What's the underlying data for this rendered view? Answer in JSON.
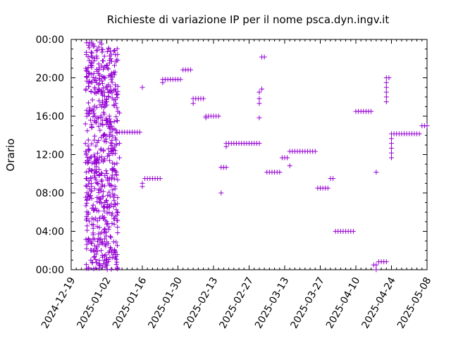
{
  "chart_data": {
    "type": "scatter",
    "title": "Richieste di variazione IP per il nome psca.dyn.ingv.it",
    "xlabel": "",
    "ylabel": "Orario",
    "marker": "+",
    "color": "#9400d3",
    "x_type": "date",
    "xlim": [
      "2024-12-19",
      "2025-05-08"
    ],
    "ylim": [
      "00:00",
      "24:00"
    ],
    "x_ticks": [
      "2024-12-19",
      "2025-01-02",
      "2025-01-16",
      "2025-01-30",
      "2025-02-13",
      "2025-02-27",
      "2025-03-13",
      "2025-03-27",
      "2025-04-10",
      "2025-04-24",
      "2025-05-08"
    ],
    "y_ticks": [
      "00:00",
      "04:00",
      "08:00",
      "12:00",
      "16:00",
      "20:00",
      "00:00"
    ],
    "grid": false,
    "legend": "none",
    "dense_region": {
      "x_range": [
        "2024-12-25",
        "2025-01-06"
      ],
      "y_range": [
        "00:00",
        "23:45"
      ],
      "columns": [
        "2024-12-25",
        "2024-12-26",
        "2024-12-27",
        "2024-12-28",
        "2024-12-29",
        "2024-12-30",
        "2024-12-31",
        "2025-01-01",
        "2025-01-02",
        "2025-01-03",
        "2025-01-04",
        "2025-01-05",
        "2025-01-06"
      ],
      "points_per_column": 48
    },
    "points": [
      {
        "x": "2025-01-06",
        "y": "14:20"
      },
      {
        "x": "2025-01-07",
        "y": "14:20"
      },
      {
        "x": "2025-01-08",
        "y": "14:20"
      },
      {
        "x": "2025-01-09",
        "y": "14:20"
      },
      {
        "x": "2025-01-10",
        "y": "14:20"
      },
      {
        "x": "2025-01-11",
        "y": "14:20"
      },
      {
        "x": "2025-01-12",
        "y": "14:20"
      },
      {
        "x": "2025-01-13",
        "y": "14:20"
      },
      {
        "x": "2025-01-14",
        "y": "14:20"
      },
      {
        "x": "2025-01-15",
        "y": "14:20"
      },
      {
        "x": "2025-01-07",
        "y": "13:10"
      },
      {
        "x": "2025-01-07",
        "y": "11:40"
      },
      {
        "x": "2025-01-07",
        "y": "16:20"
      },
      {
        "x": "2025-01-16",
        "y": "19:00"
      },
      {
        "x": "2025-01-16",
        "y": "08:40"
      },
      {
        "x": "2025-01-16",
        "y": "09:00"
      },
      {
        "x": "2025-01-17",
        "y": "09:30"
      },
      {
        "x": "2025-01-18",
        "y": "09:30"
      },
      {
        "x": "2025-01-19",
        "y": "09:30"
      },
      {
        "x": "2025-01-20",
        "y": "09:30"
      },
      {
        "x": "2025-01-21",
        "y": "09:30"
      },
      {
        "x": "2025-01-22",
        "y": "09:30"
      },
      {
        "x": "2025-01-23",
        "y": "09:30"
      },
      {
        "x": "2025-01-24",
        "y": "19:30"
      },
      {
        "x": "2025-01-24",
        "y": "19:50"
      },
      {
        "x": "2025-01-25",
        "y": "19:50"
      },
      {
        "x": "2025-01-26",
        "y": "19:50"
      },
      {
        "x": "2025-01-27",
        "y": "19:50"
      },
      {
        "x": "2025-01-28",
        "y": "19:50"
      },
      {
        "x": "2025-01-29",
        "y": "19:50"
      },
      {
        "x": "2025-01-30",
        "y": "19:50"
      },
      {
        "x": "2025-01-31",
        "y": "19:50"
      },
      {
        "x": "2025-02-01",
        "y": "20:50"
      },
      {
        "x": "2025-02-02",
        "y": "20:50"
      },
      {
        "x": "2025-02-03",
        "y": "20:50"
      },
      {
        "x": "2025-02-04",
        "y": "20:50"
      },
      {
        "x": "2025-02-05",
        "y": "17:20"
      },
      {
        "x": "2025-02-05",
        "y": "17:50"
      },
      {
        "x": "2025-02-06",
        "y": "17:50"
      },
      {
        "x": "2025-02-07",
        "y": "17:50"
      },
      {
        "x": "2025-02-08",
        "y": "17:50"
      },
      {
        "x": "2025-02-09",
        "y": "17:50"
      },
      {
        "x": "2025-02-10",
        "y": "15:50"
      },
      {
        "x": "2025-02-10",
        "y": "16:00"
      },
      {
        "x": "2025-02-11",
        "y": "16:00"
      },
      {
        "x": "2025-02-12",
        "y": "16:00"
      },
      {
        "x": "2025-02-13",
        "y": "16:00"
      },
      {
        "x": "2025-02-14",
        "y": "16:00"
      },
      {
        "x": "2025-02-15",
        "y": "16:00"
      },
      {
        "x": "2025-02-16",
        "y": "08:00"
      },
      {
        "x": "2025-02-16",
        "y": "10:40"
      },
      {
        "x": "2025-02-17",
        "y": "10:40"
      },
      {
        "x": "2025-02-18",
        "y": "10:40"
      },
      {
        "x": "2025-02-18",
        "y": "12:50"
      },
      {
        "x": "2025-02-18",
        "y": "13:10"
      },
      {
        "x": "2025-02-19",
        "y": "13:10"
      },
      {
        "x": "2025-02-20",
        "y": "13:10"
      },
      {
        "x": "2025-02-21",
        "y": "13:10"
      },
      {
        "x": "2025-02-22",
        "y": "13:10"
      },
      {
        "x": "2025-02-23",
        "y": "13:10"
      },
      {
        "x": "2025-02-24",
        "y": "13:10"
      },
      {
        "x": "2025-02-25",
        "y": "13:10"
      },
      {
        "x": "2025-02-26",
        "y": "13:10"
      },
      {
        "x": "2025-02-27",
        "y": "13:10"
      },
      {
        "x": "2025-02-28",
        "y": "13:10"
      },
      {
        "x": "2025-03-01",
        "y": "13:10"
      },
      {
        "x": "2025-03-02",
        "y": "13:10"
      },
      {
        "x": "2025-03-03",
        "y": "13:10"
      },
      {
        "x": "2025-03-03",
        "y": "15:50"
      },
      {
        "x": "2025-03-03",
        "y": "17:20"
      },
      {
        "x": "2025-03-03",
        "y": "17:50"
      },
      {
        "x": "2025-03-03",
        "y": "18:30"
      },
      {
        "x": "2025-03-04",
        "y": "18:50"
      },
      {
        "x": "2025-03-04",
        "y": "22:10"
      },
      {
        "x": "2025-03-05",
        "y": "22:10"
      },
      {
        "x": "2025-03-06",
        "y": "10:10"
      },
      {
        "x": "2025-03-07",
        "y": "10:10"
      },
      {
        "x": "2025-03-08",
        "y": "10:10"
      },
      {
        "x": "2025-03-09",
        "y": "10:10"
      },
      {
        "x": "2025-03-10",
        "y": "10:10"
      },
      {
        "x": "2025-03-11",
        "y": "10:10"
      },
      {
        "x": "2025-03-12",
        "y": "11:40"
      },
      {
        "x": "2025-03-13",
        "y": "11:40"
      },
      {
        "x": "2025-03-14",
        "y": "11:40"
      },
      {
        "x": "2025-03-15",
        "y": "10:50"
      },
      {
        "x": "2025-03-15",
        "y": "12:20"
      },
      {
        "x": "2025-03-16",
        "y": "12:20"
      },
      {
        "x": "2025-03-17",
        "y": "12:20"
      },
      {
        "x": "2025-03-18",
        "y": "12:20"
      },
      {
        "x": "2025-03-19",
        "y": "12:20"
      },
      {
        "x": "2025-03-20",
        "y": "12:20"
      },
      {
        "x": "2025-03-21",
        "y": "12:20"
      },
      {
        "x": "2025-03-22",
        "y": "12:20"
      },
      {
        "x": "2025-03-23",
        "y": "12:20"
      },
      {
        "x": "2025-03-24",
        "y": "12:20"
      },
      {
        "x": "2025-03-25",
        "y": "12:20"
      },
      {
        "x": "2025-03-26",
        "y": "08:30"
      },
      {
        "x": "2025-03-27",
        "y": "08:30"
      },
      {
        "x": "2025-03-28",
        "y": "08:30"
      },
      {
        "x": "2025-03-29",
        "y": "08:30"
      },
      {
        "x": "2025-03-30",
        "y": "08:30"
      },
      {
        "x": "2025-03-31",
        "y": "09:30"
      },
      {
        "x": "2025-04-01",
        "y": "09:30"
      },
      {
        "x": "2025-04-02",
        "y": "04:00"
      },
      {
        "x": "2025-04-03",
        "y": "04:00"
      },
      {
        "x": "2025-04-04",
        "y": "04:00"
      },
      {
        "x": "2025-04-05",
        "y": "04:00"
      },
      {
        "x": "2025-04-06",
        "y": "04:00"
      },
      {
        "x": "2025-04-07",
        "y": "04:00"
      },
      {
        "x": "2025-04-08",
        "y": "04:00"
      },
      {
        "x": "2025-04-09",
        "y": "04:00"
      },
      {
        "x": "2025-04-10",
        "y": "16:30"
      },
      {
        "x": "2025-04-11",
        "y": "16:30"
      },
      {
        "x": "2025-04-12",
        "y": "16:30"
      },
      {
        "x": "2025-04-13",
        "y": "16:30"
      },
      {
        "x": "2025-04-14",
        "y": "16:30"
      },
      {
        "x": "2025-04-15",
        "y": "16:30"
      },
      {
        "x": "2025-04-16",
        "y": "16:30"
      },
      {
        "x": "2025-04-17",
        "y": "00:30"
      },
      {
        "x": "2025-04-18",
        "y": "00:30"
      },
      {
        "x": "2025-04-18",
        "y": "10:10"
      },
      {
        "x": "2025-04-18",
        "y": "00:00"
      },
      {
        "x": "2025-04-19",
        "y": "00:50"
      },
      {
        "x": "2025-04-20",
        "y": "00:50"
      },
      {
        "x": "2025-04-21",
        "y": "00:50"
      },
      {
        "x": "2025-04-22",
        "y": "00:50"
      },
      {
        "x": "2025-04-22",
        "y": "17:30"
      },
      {
        "x": "2025-04-22",
        "y": "18:00"
      },
      {
        "x": "2025-04-22",
        "y": "18:30"
      },
      {
        "x": "2025-04-22",
        "y": "19:00"
      },
      {
        "x": "2025-04-22",
        "y": "19:30"
      },
      {
        "x": "2025-04-22",
        "y": "20:00"
      },
      {
        "x": "2025-04-23",
        "y": "20:00"
      },
      {
        "x": "2025-04-24",
        "y": "11:40"
      },
      {
        "x": "2025-04-24",
        "y": "12:10"
      },
      {
        "x": "2025-04-24",
        "y": "12:40"
      },
      {
        "x": "2025-04-24",
        "y": "13:10"
      },
      {
        "x": "2025-04-24",
        "y": "13:40"
      },
      {
        "x": "2025-04-24",
        "y": "14:10"
      },
      {
        "x": "2025-04-25",
        "y": "14:10"
      },
      {
        "x": "2025-04-26",
        "y": "14:10"
      },
      {
        "x": "2025-04-27",
        "y": "14:10"
      },
      {
        "x": "2025-04-28",
        "y": "14:10"
      },
      {
        "x": "2025-04-29",
        "y": "14:10"
      },
      {
        "x": "2025-04-30",
        "y": "14:10"
      },
      {
        "x": "2025-05-01",
        "y": "14:10"
      },
      {
        "x": "2025-05-02",
        "y": "14:10"
      },
      {
        "x": "2025-05-03",
        "y": "14:10"
      },
      {
        "x": "2025-05-04",
        "y": "14:10"
      },
      {
        "x": "2025-05-05",
        "y": "14:10"
      },
      {
        "x": "2025-05-06",
        "y": "15:00"
      },
      {
        "x": "2025-05-07",
        "y": "15:00"
      },
      {
        "x": "2025-05-08",
        "y": "15:00"
      }
    ]
  }
}
